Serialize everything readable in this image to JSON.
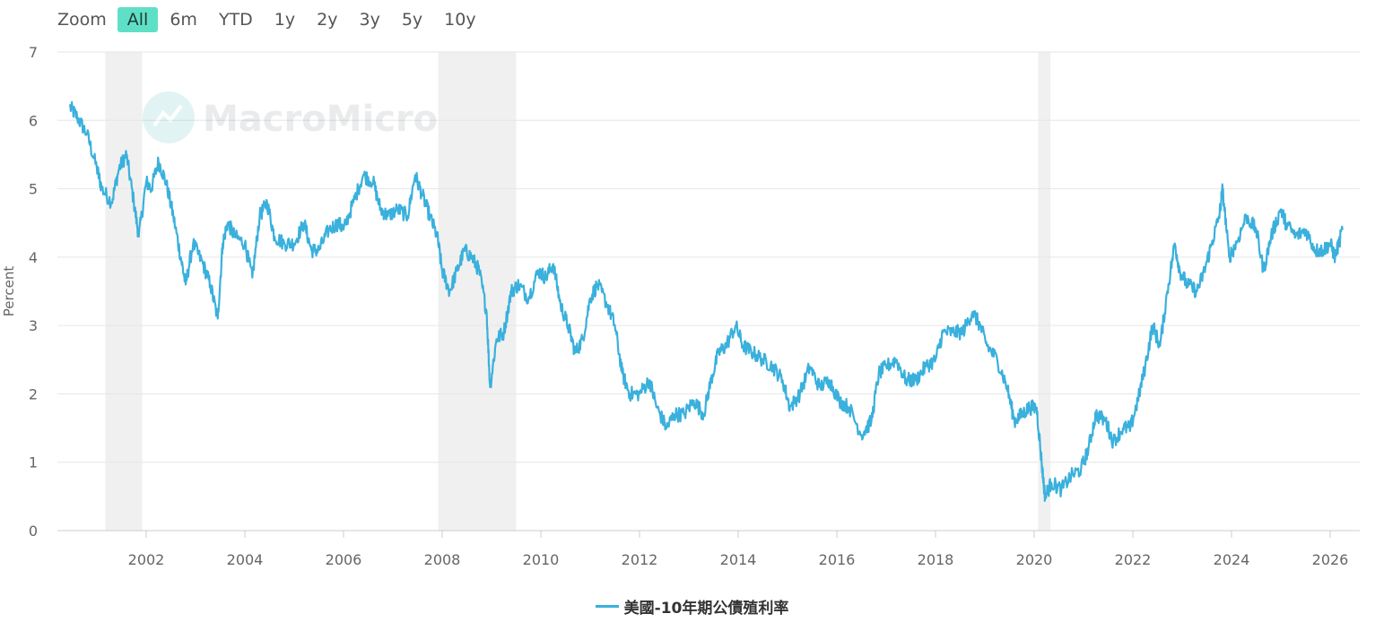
{
  "zoom": {
    "label": "Zoom",
    "options": [
      "All",
      "6m",
      "YTD",
      "1y",
      "2y",
      "3y",
      "5y",
      "10y"
    ],
    "active": "All"
  },
  "watermark": "MacroMicro",
  "colors": {
    "line": "#3ab0dc",
    "accent": "#5fe0c6",
    "recession": "#f0f0f0"
  },
  "chart_data": {
    "type": "line",
    "ylabel": "Percent",
    "ylim": [
      0,
      7
    ],
    "yticks": [
      0,
      1,
      2,
      3,
      4,
      5,
      6,
      7
    ],
    "xlim": [
      2000.2,
      2026.6
    ],
    "xticks": [
      "2002",
      "2004",
      "2006",
      "2008",
      "2010",
      "2012",
      "2014",
      "2016",
      "2018",
      "2020",
      "2022",
      "2024",
      "2026"
    ],
    "grid": true,
    "legend_position": "bottom-center",
    "recessions": [
      [
        2001.17,
        2001.92
      ],
      [
        2007.92,
        2009.5
      ],
      [
        2020.08,
        2020.33
      ]
    ],
    "series": [
      {
        "name": "美國-10年期公債殖利率",
        "color": "#3ab0dc",
        "points": [
          [
            2000.45,
            6.2
          ],
          [
            2000.6,
            6.05
          ],
          [
            2000.8,
            5.8
          ],
          [
            2001.0,
            5.3
          ],
          [
            2001.1,
            5.0
          ],
          [
            2001.3,
            4.8
          ],
          [
            2001.45,
            5.3
          ],
          [
            2001.6,
            5.5
          ],
          [
            2001.75,
            4.8
          ],
          [
            2001.85,
            4.3
          ],
          [
            2002.0,
            5.1
          ],
          [
            2002.1,
            5.0
          ],
          [
            2002.25,
            5.4
          ],
          [
            2002.4,
            5.1
          ],
          [
            2002.55,
            4.6
          ],
          [
            2002.7,
            4.0
          ],
          [
            2002.8,
            3.6
          ],
          [
            2002.95,
            4.2
          ],
          [
            2003.15,
            3.9
          ],
          [
            2003.3,
            3.6
          ],
          [
            2003.45,
            3.1
          ],
          [
            2003.55,
            4.2
          ],
          [
            2003.65,
            4.5
          ],
          [
            2003.8,
            4.3
          ],
          [
            2004.0,
            4.2
          ],
          [
            2004.15,
            3.7
          ],
          [
            2004.3,
            4.6
          ],
          [
            2004.45,
            4.8
          ],
          [
            2004.6,
            4.3
          ],
          [
            2004.8,
            4.2
          ],
          [
            2005.0,
            4.2
          ],
          [
            2005.2,
            4.5
          ],
          [
            2005.35,
            4.1
          ],
          [
            2005.5,
            4.1
          ],
          [
            2005.7,
            4.4
          ],
          [
            2005.9,
            4.5
          ],
          [
            2006.0,
            4.4
          ],
          [
            2006.2,
            4.8
          ],
          [
            2006.4,
            5.2
          ],
          [
            2006.6,
            5.1
          ],
          [
            2006.75,
            4.7
          ],
          [
            2006.9,
            4.6
          ],
          [
            2007.1,
            4.7
          ],
          [
            2007.3,
            4.6
          ],
          [
            2007.45,
            5.2
          ],
          [
            2007.6,
            4.9
          ],
          [
            2007.75,
            4.6
          ],
          [
            2007.9,
            4.3
          ],
          [
            2008.0,
            3.8
          ],
          [
            2008.15,
            3.5
          ],
          [
            2008.3,
            3.8
          ],
          [
            2008.45,
            4.1
          ],
          [
            2008.6,
            4.0
          ],
          [
            2008.75,
            3.8
          ],
          [
            2008.9,
            3.2
          ],
          [
            2008.97,
            2.1
          ],
          [
            2009.1,
            2.8
          ],
          [
            2009.25,
            2.9
          ],
          [
            2009.4,
            3.5
          ],
          [
            2009.55,
            3.6
          ],
          [
            2009.75,
            3.4
          ],
          [
            2009.95,
            3.8
          ],
          [
            2010.1,
            3.7
          ],
          [
            2010.25,
            3.9
          ],
          [
            2010.4,
            3.3
          ],
          [
            2010.55,
            3.0
          ],
          [
            2010.7,
            2.6
          ],
          [
            2010.85,
            2.8
          ],
          [
            2011.0,
            3.4
          ],
          [
            2011.15,
            3.6
          ],
          [
            2011.35,
            3.3
          ],
          [
            2011.5,
            3.0
          ],
          [
            2011.65,
            2.3
          ],
          [
            2011.8,
            2.0
          ],
          [
            2012.0,
            2.0
          ],
          [
            2012.2,
            2.2
          ],
          [
            2012.35,
            1.8
          ],
          [
            2012.55,
            1.5
          ],
          [
            2012.7,
            1.7
          ],
          [
            2012.9,
            1.7
          ],
          [
            2013.1,
            1.9
          ],
          [
            2013.3,
            1.7
          ],
          [
            2013.45,
            2.2
          ],
          [
            2013.6,
            2.6
          ],
          [
            2013.75,
            2.7
          ],
          [
            2013.95,
            3.0
          ],
          [
            2014.1,
            2.7
          ],
          [
            2014.3,
            2.6
          ],
          [
            2014.5,
            2.5
          ],
          [
            2014.7,
            2.4
          ],
          [
            2014.9,
            2.2
          ],
          [
            2015.05,
            1.8
          ],
          [
            2015.25,
            2.0
          ],
          [
            2015.45,
            2.4
          ],
          [
            2015.65,
            2.1
          ],
          [
            2015.85,
            2.2
          ],
          [
            2016.05,
            1.9
          ],
          [
            2016.25,
            1.8
          ],
          [
            2016.5,
            1.4
          ],
          [
            2016.7,
            1.6
          ],
          [
            2016.85,
            2.3
          ],
          [
            2017.0,
            2.4
          ],
          [
            2017.2,
            2.5
          ],
          [
            2017.4,
            2.2
          ],
          [
            2017.6,
            2.2
          ],
          [
            2017.8,
            2.4
          ],
          [
            2018.0,
            2.5
          ],
          [
            2018.15,
            2.9
          ],
          [
            2018.35,
            2.9
          ],
          [
            2018.55,
            2.9
          ],
          [
            2018.75,
            3.2
          ],
          [
            2018.9,
            3.0
          ],
          [
            2019.05,
            2.7
          ],
          [
            2019.25,
            2.5
          ],
          [
            2019.45,
            2.1
          ],
          [
            2019.6,
            1.6
          ],
          [
            2019.75,
            1.7
          ],
          [
            2019.9,
            1.8
          ],
          [
            2020.05,
            1.8
          ],
          [
            2020.15,
            1.0
          ],
          [
            2020.22,
            0.5
          ],
          [
            2020.35,
            0.7
          ],
          [
            2020.55,
            0.6
          ],
          [
            2020.75,
            0.8
          ],
          [
            2020.95,
            0.9
          ],
          [
            2021.1,
            1.2
          ],
          [
            2021.25,
            1.7
          ],
          [
            2021.45,
            1.6
          ],
          [
            2021.6,
            1.3
          ],
          [
            2021.8,
            1.5
          ],
          [
            2021.95,
            1.5
          ],
          [
            2022.1,
            1.9
          ],
          [
            2022.25,
            2.4
          ],
          [
            2022.4,
            3.0
          ],
          [
            2022.55,
            2.7
          ],
          [
            2022.7,
            3.5
          ],
          [
            2022.85,
            4.2
          ],
          [
            2022.95,
            3.8
          ],
          [
            2023.1,
            3.6
          ],
          [
            2023.3,
            3.5
          ],
          [
            2023.45,
            3.8
          ],
          [
            2023.6,
            4.2
          ],
          [
            2023.75,
            4.6
          ],
          [
            2023.82,
            5.0
          ],
          [
            2023.95,
            4.0
          ],
          [
            2024.1,
            4.2
          ],
          [
            2024.3,
            4.6
          ],
          [
            2024.5,
            4.4
          ],
          [
            2024.65,
            3.8
          ],
          [
            2024.8,
            4.3
          ],
          [
            2025.0,
            4.7
          ],
          [
            2025.1,
            4.5
          ],
          [
            2025.3,
            4.3
          ],
          [
            2025.5,
            4.4
          ],
          [
            2025.7,
            4.1
          ],
          [
            2025.85,
            4.1
          ],
          [
            2026.0,
            4.2
          ],
          [
            2026.1,
            4.0
          ],
          [
            2026.25,
            4.4
          ]
        ]
      }
    ]
  }
}
